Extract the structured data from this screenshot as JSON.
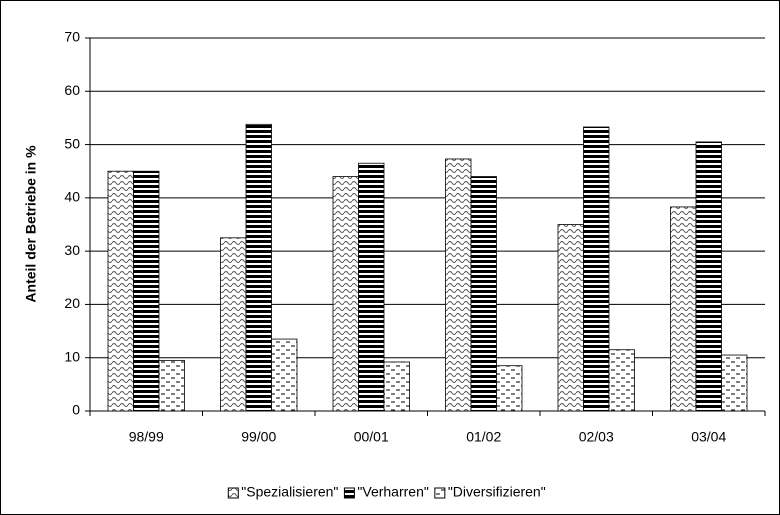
{
  "chart_data": {
    "type": "bar",
    "y_label": "Anteil der Betriebe in %",
    "categories": [
      "98/99",
      "99/00",
      "00/01",
      "01/02",
      "02/03",
      "03/04"
    ],
    "series": [
      {
        "name": "\"Spezialisieren\"",
        "color": "#000000",
        "pattern": "wave",
        "values": [
          45,
          32.5,
          44,
          47.3,
          35,
          38.3
        ]
      },
      {
        "name": "\"Verharren\"",
        "color": "#000000",
        "pattern": "stripes",
        "values": [
          45,
          53.8,
          46.5,
          44,
          53.3,
          50.5
        ]
      },
      {
        "name": "\"Diversifizieren\"",
        "color": "#000000",
        "pattern": "dashes",
        "values": [
          9.5,
          13.5,
          9.2,
          8.5,
          11.5,
          10.5
        ]
      }
    ],
    "ylim": [
      0,
      70
    ],
    "yticks": [
      0,
      10,
      20,
      30,
      40,
      50,
      60,
      70
    ],
    "grid": true,
    "legend": "bottom"
  }
}
